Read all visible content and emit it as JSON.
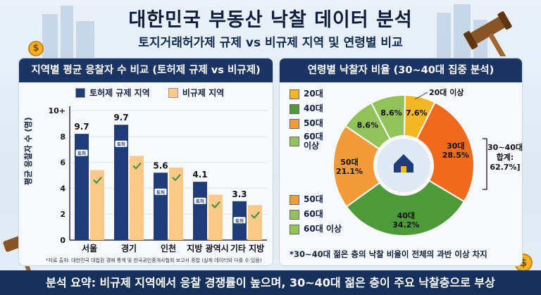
{
  "title": "대한민국 부동산 낙찰 데이터 분석",
  "subtitle": "토지거래허가제 규제 vs 비규제 지역 및 연령별 비교",
  "bar_panel": {
    "heading": "지역별 평균 응찰자 수 비교 (토허제 규제 vs 비규제)",
    "legend_regulated": "토허제 규제 지역",
    "legend_unregulated": "비규제 지역",
    "ylabel": "평균 응찰자 수 (명)",
    "source": "*자료 출처: 대한민국 대법원 경매 통계 및 한국공인중개사협회 보고서 종합 (실제 데이터와 다를 수 있음)",
    "bar_tag": "토허"
  },
  "pie_panel": {
    "heading": "연령별 낙찰자 비율 (30~40대 집중 분석)",
    "legend_top": [
      "20대",
      "40대",
      "50대",
      "60대\n이상"
    ],
    "legend_bottom": [
      "50대",
      "60대",
      "60대 이상"
    ],
    "callout_20s": "20대 이상",
    "combined_label": "30~40대\n합계:\n62.7%]",
    "note": "*30~40대 젊은 층의 낙찰 비율이 전체의 과반 이상 차지"
  },
  "summary": "분석 요약: 비규제 지역에서 응찰 경쟁률이 높으며, 30~40대 젊은 층이 주요 낙찰층으로 부상",
  "colors": {
    "regulated": "#1e3c78",
    "unregulated": "#f9c98a",
    "pie_20s": "#f5b623",
    "pie_30s": "#f06a1e",
    "pie_40s": "#4e9a3a",
    "pie_50s": "#f39a3a",
    "pie_60s": "#93c25a"
  },
  "chart_data": [
    {
      "type": "bar",
      "title": "지역별 평균 응찰자 수 비교 (토허제 규제 vs 비규제)",
      "ylabel": "평균 응찰자 수 (명)",
      "ylim": [
        0,
        10
      ],
      "yticks": [
        "0",
        "2",
        "4",
        "6",
        "8",
        "10+"
      ],
      "categories": [
        "서울",
        "경기",
        "인천",
        "지방 광역시",
        "기타 지방"
      ],
      "series": [
        {
          "name": "토허제 규제 지역",
          "values": [
            8.2,
            8.9,
            5.2,
            4.5,
            3.0
          ]
        },
        {
          "name": "비규제 지역",
          "values": [
            5.4,
            6.5,
            5.6,
            3.5,
            2.7
          ]
        }
      ],
      "data_labels": [
        "9.7",
        "9.7",
        "5.6",
        "4.1",
        "3.3"
      ],
      "legend": "top"
    },
    {
      "type": "pie",
      "title": "연령별 낙찰자 비율 (30~40대 집중 분석)",
      "slices": [
        {
          "label": "20대",
          "value": 7.6,
          "text": "7.6%"
        },
        {
          "label": "30대",
          "value": 28.5,
          "text": "30대\n28.5%"
        },
        {
          "label": "40대",
          "value": 34.2,
          "text": "40대\n34.2%"
        },
        {
          "label": "50대",
          "value": 21.1,
          "text": "50대\n21.1%"
        },
        {
          "label": "60대",
          "value": 8.6,
          "text": "8.6%"
        },
        {
          "label": "60대 이상",
          "value": 8.6,
          "text": "8.6%"
        }
      ],
      "legend": "left"
    }
  ]
}
